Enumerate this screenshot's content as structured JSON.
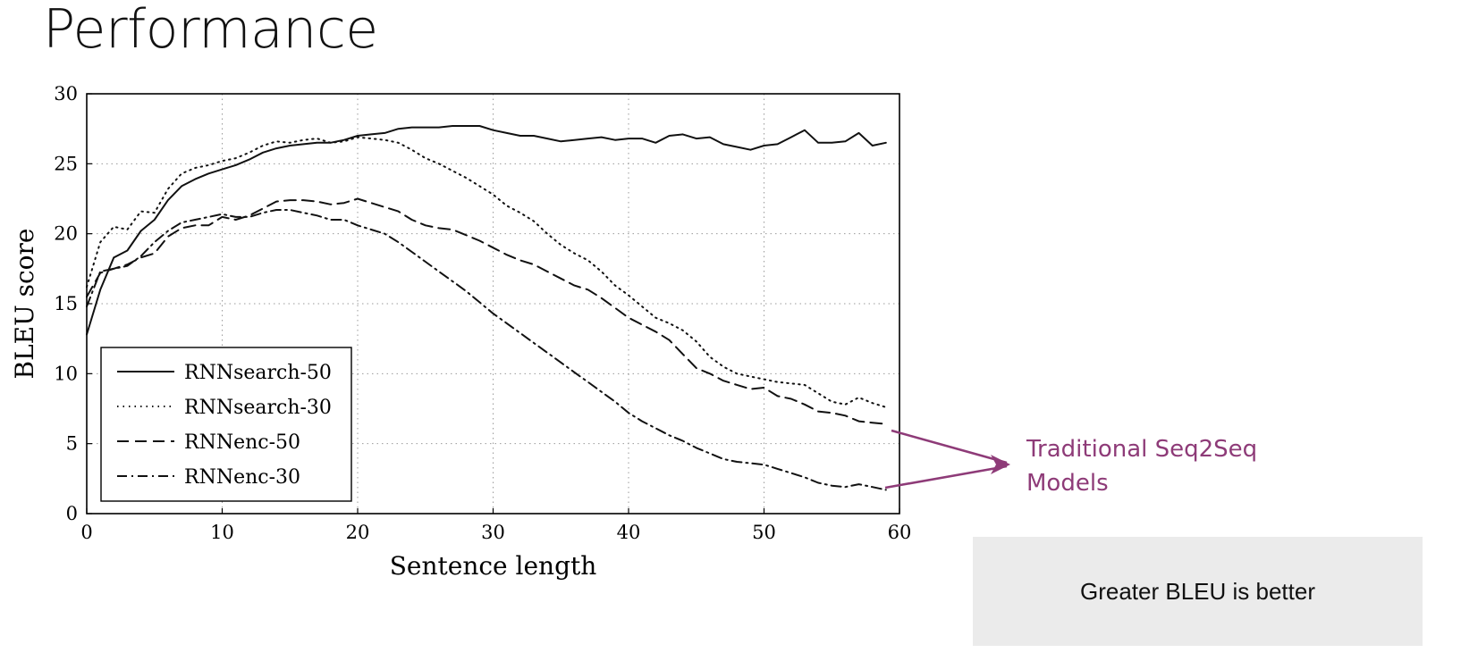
{
  "slide": {
    "title": "Performance",
    "annotation": [
      "Traditional Seq2Seq",
      "Models"
    ],
    "note": "Greater BLEU is better",
    "annotation_color": "#8e3b78"
  },
  "chart_data": {
    "type": "line",
    "xlabel": "Sentence length",
    "ylabel": "BLEU score",
    "xlim": [
      0,
      60
    ],
    "ylim": [
      0,
      30
    ],
    "xticks": [
      0,
      10,
      20,
      30,
      40,
      50,
      60
    ],
    "yticks": [
      0,
      5,
      10,
      15,
      20,
      25,
      30
    ],
    "grid": true,
    "legend_position": "lower-left",
    "series": [
      {
        "name": "RNNsearch-50",
        "style": "solid",
        "x": [
          0,
          1,
          2,
          3,
          4,
          5,
          6,
          7,
          8,
          9,
          10,
          11,
          12,
          13,
          14,
          15,
          16,
          17,
          18,
          19,
          20,
          21,
          22,
          23,
          24,
          25,
          26,
          27,
          28,
          29,
          30,
          31,
          32,
          33,
          34,
          35,
          36,
          37,
          38,
          39,
          40,
          41,
          42,
          43,
          44,
          45,
          46,
          47,
          48,
          49,
          50,
          51,
          52,
          53,
          54,
          55,
          56,
          57,
          58,
          59
        ],
        "y": [
          12.8,
          16.0,
          18.3,
          18.8,
          20.2,
          21.0,
          22.4,
          23.4,
          23.9,
          24.3,
          24.6,
          24.9,
          25.3,
          25.8,
          26.1,
          26.3,
          26.4,
          26.5,
          26.5,
          26.7,
          27.0,
          27.1,
          27.2,
          27.5,
          27.6,
          27.6,
          27.6,
          27.7,
          27.7,
          27.7,
          27.4,
          27.2,
          27.0,
          27.0,
          26.8,
          26.6,
          26.7,
          26.8,
          26.9,
          26.7,
          26.8,
          26.8,
          26.5,
          27.0,
          27.1,
          26.8,
          26.9,
          26.4,
          26.2,
          26.0,
          26.3,
          26.4,
          26.9,
          27.4,
          26.5,
          26.5,
          26.6,
          27.2,
          26.3,
          26.5
        ]
      },
      {
        "name": "RNNsearch-30",
        "style": "dotted",
        "x": [
          0,
          1,
          2,
          3,
          4,
          5,
          6,
          7,
          8,
          9,
          10,
          11,
          12,
          13,
          14,
          15,
          16,
          17,
          18,
          19,
          20,
          21,
          22,
          23,
          24,
          25,
          26,
          27,
          28,
          29,
          30,
          31,
          32,
          33,
          34,
          35,
          36,
          37,
          38,
          39,
          40,
          41,
          42,
          43,
          44,
          45,
          46,
          47,
          48,
          49,
          50,
          51,
          52,
          53,
          54,
          55,
          56,
          57,
          58,
          59
        ],
        "y": [
          16.2,
          19.4,
          20.5,
          20.3,
          21.6,
          21.5,
          23.2,
          24.3,
          24.7,
          24.9,
          25.2,
          25.4,
          25.8,
          26.3,
          26.6,
          26.5,
          26.7,
          26.8,
          26.5,
          26.6,
          26.9,
          26.8,
          26.7,
          26.5,
          26.0,
          25.4,
          25.0,
          24.5,
          24.0,
          23.4,
          22.8,
          22.0,
          21.5,
          20.9,
          20.0,
          19.2,
          18.6,
          18.1,
          17.3,
          16.3,
          15.6,
          14.8,
          14.0,
          13.6,
          13.1,
          12.3,
          11.2,
          10.5,
          10.0,
          9.8,
          9.6,
          9.4,
          9.3,
          9.2,
          8.6,
          8.0,
          7.8,
          8.3,
          7.9,
          7.6
        ]
      },
      {
        "name": "RNNenc-50",
        "style": "dashed",
        "x": [
          0,
          1,
          2,
          3,
          4,
          5,
          6,
          7,
          8,
          9,
          10,
          11,
          12,
          13,
          14,
          15,
          16,
          17,
          18,
          19,
          20,
          21,
          22,
          23,
          24,
          25,
          26,
          27,
          28,
          29,
          30,
          31,
          32,
          33,
          34,
          35,
          36,
          37,
          38,
          39,
          40,
          41,
          42,
          43,
          44,
          45,
          46,
          47,
          48,
          49,
          50,
          51,
          52,
          53,
          54,
          55,
          56,
          57,
          58,
          59
        ],
        "y": [
          15.5,
          17.2,
          17.5,
          17.8,
          18.3,
          18.6,
          19.8,
          20.4,
          20.6,
          20.6,
          21.2,
          21.0,
          21.3,
          21.8,
          22.3,
          22.4,
          22.4,
          22.3,
          22.1,
          22.2,
          22.5,
          22.2,
          21.9,
          21.6,
          21.0,
          20.6,
          20.4,
          20.3,
          19.9,
          19.5,
          19.0,
          18.5,
          18.1,
          17.8,
          17.3,
          16.8,
          16.3,
          16.0,
          15.4,
          14.7,
          14.0,
          13.5,
          13.0,
          12.4,
          11.4,
          10.4,
          10.0,
          9.5,
          9.2,
          8.9,
          9.0,
          8.4,
          8.2,
          7.8,
          7.3,
          7.2,
          7.0,
          6.6,
          6.5,
          6.4
        ]
      },
      {
        "name": "RNNenc-30",
        "style": "dashdot",
        "x": [
          0,
          1,
          2,
          3,
          4,
          5,
          6,
          7,
          8,
          9,
          10,
          11,
          12,
          13,
          14,
          15,
          16,
          17,
          18,
          19,
          20,
          21,
          22,
          23,
          24,
          25,
          26,
          27,
          28,
          29,
          30,
          31,
          32,
          33,
          34,
          35,
          36,
          37,
          38,
          39,
          40,
          41,
          42,
          43,
          44,
          45,
          46,
          47,
          48,
          49,
          50,
          51,
          52,
          53,
          54,
          55,
          56,
          57,
          58,
          59
        ],
        "y": [
          14.8,
          17.3,
          17.5,
          17.7,
          18.4,
          19.4,
          20.2,
          20.8,
          21.0,
          21.2,
          21.4,
          21.2,
          21.2,
          21.5,
          21.7,
          21.7,
          21.5,
          21.3,
          21.0,
          21.0,
          20.6,
          20.3,
          20.0,
          19.4,
          18.7,
          18.0,
          17.3,
          16.6,
          15.9,
          15.1,
          14.3,
          13.6,
          12.9,
          12.2,
          11.5,
          10.8,
          10.1,
          9.4,
          8.7,
          8.0,
          7.2,
          6.6,
          6.1,
          5.6,
          5.2,
          4.7,
          4.3,
          3.9,
          3.7,
          3.6,
          3.5,
          3.2,
          2.9,
          2.6,
          2.2,
          2.0,
          1.9,
          2.1,
          1.9,
          1.7
        ]
      }
    ]
  }
}
